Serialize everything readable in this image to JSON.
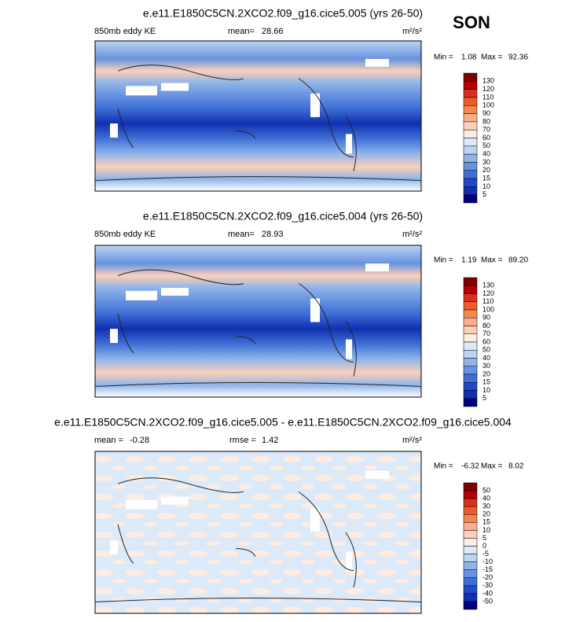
{
  "season": "SON",
  "panels": [
    {
      "title": "e.e11.E1850C5CN.2XCO2.f09_g16.cice5.005 (yrs 26-50)",
      "left_label": "850mb eddy KE",
      "stats": [
        {
          "label": "mean=",
          "value": "28.66"
        }
      ],
      "units": "m²/s²",
      "min_label": "Min =",
      "min": "1.08",
      "max_label": "Max =",
      "max": "92.36",
      "colorbar": {
        "labels": [
          130,
          120,
          110,
          100,
          90,
          80,
          70,
          60,
          50,
          40,
          30,
          20,
          15,
          10,
          5
        ],
        "colors": [
          "#7f0000",
          "#b30000",
          "#d7301f",
          "#ef5a2a",
          "#f4874f",
          "#f9b08a",
          "#fbd0b9",
          "#fdece2",
          "#dce9f8",
          "#bcd4f2",
          "#8fb4ea",
          "#6692e0",
          "#3f6fd6",
          "#2048c8",
          "#1030b0",
          "#000080"
        ]
      }
    },
    {
      "title": "e.e11.E1850C5CN.2XCO2.f09_g16.cice5.004 (yrs 26-50)",
      "left_label": "850mb eddy KE",
      "stats": [
        {
          "label": "mean=",
          "value": "28.93"
        }
      ],
      "units": "m²/s²",
      "min_label": "Min =",
      "min": "1.19",
      "max_label": "Max =",
      "max": "89.20",
      "colorbar": {
        "labels": [
          130,
          120,
          110,
          100,
          90,
          80,
          70,
          60,
          50,
          40,
          30,
          20,
          15,
          10,
          5
        ],
        "colors": [
          "#7f0000",
          "#b30000",
          "#d7301f",
          "#ef5a2a",
          "#f4874f",
          "#f9b08a",
          "#fbd0b9",
          "#fdece2",
          "#dce9f8",
          "#bcd4f2",
          "#8fb4ea",
          "#6692e0",
          "#3f6fd6",
          "#2048c8",
          "#1030b0",
          "#000080"
        ]
      }
    },
    {
      "title": "e.e11.E1850C5CN.2XCO2.f09_g16.cice5.005 - e.e11.E1850C5CN.2XCO2.f09_g16.cice5.004",
      "left_label": null,
      "stats": [
        {
          "label": "mean =",
          "value": "-0.28"
        },
        {
          "label": "rmse =",
          "value": "1.42"
        }
      ],
      "units": "m²/s²",
      "min_label": "Min =",
      "min": "-6.32",
      "max_label": "Max =",
      "max": "8.02",
      "colorbar": {
        "labels": [
          50,
          40,
          30,
          20,
          15,
          10,
          5,
          0,
          -5,
          -10,
          -15,
          -20,
          -30,
          -40,
          -50
        ],
        "colors": [
          "#7f0000",
          "#b30000",
          "#d7301f",
          "#ef5a2a",
          "#f4874f",
          "#f9b08a",
          "#fbd0b9",
          "#fdece2",
          "#dce9f8",
          "#bcd4f2",
          "#8fb4ea",
          "#6692e0",
          "#3f6fd6",
          "#2048c8",
          "#1030b0",
          "#000080"
        ]
      }
    }
  ]
}
